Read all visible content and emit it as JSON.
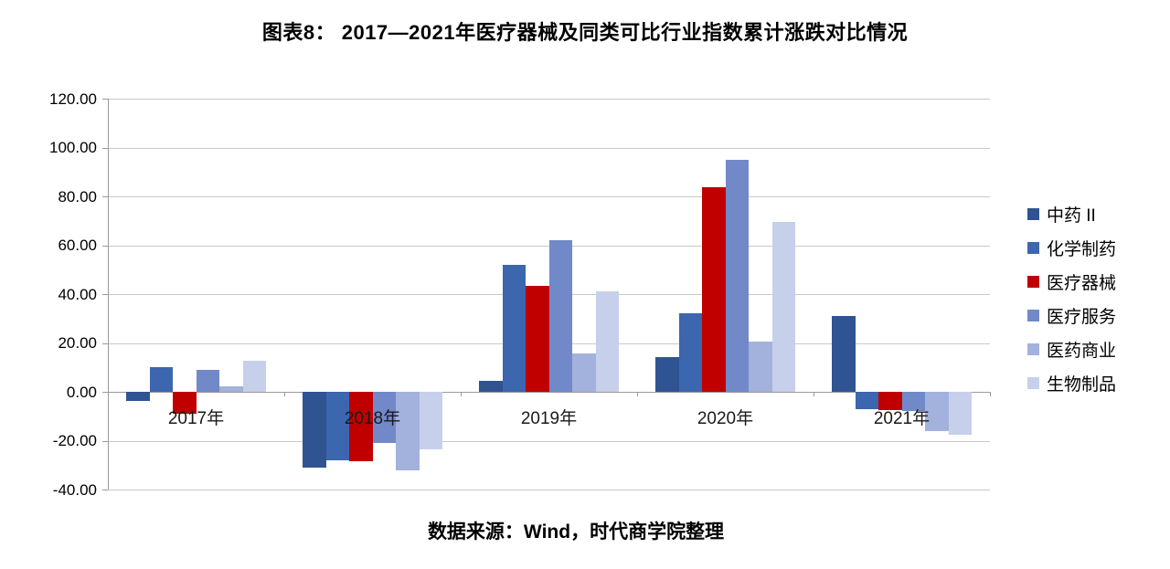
{
  "chart_data": {
    "type": "bar",
    "title": "图表8： 2017—2021年医疗器械及同类可比行业指数累计涨跌对比情况",
    "categories": [
      "2017年",
      "2018年",
      "2019年",
      "2020年",
      "2021年"
    ],
    "series": [
      {
        "name": "中药 II",
        "color": "#2f5491",
        "values": [
          -3.9,
          -31.2,
          4.4,
          14.3,
          31.2
        ]
      },
      {
        "name": "化学制药",
        "color": "#3c66ae",
        "values": [
          10.2,
          -27.9,
          51.8,
          32.3,
          -7.1
        ]
      },
      {
        "name": "医疗器械",
        "color": "#c00000",
        "values": [
          -8.8,
          -28.4,
          43.2,
          83.7,
          -7.4
        ]
      },
      {
        "name": "医疗服务",
        "color": "#7189c9",
        "values": [
          8.8,
          -21.0,
          62.2,
          95.0,
          -7.9
        ]
      },
      {
        "name": "医药商业",
        "color": "#a3b2dc",
        "values": [
          2.3,
          -32.0,
          15.8,
          20.5,
          -16.2
        ]
      },
      {
        "name": "生物制品",
        "color": "#c6d0ea",
        "values": [
          12.8,
          -23.5,
          41.3,
          69.5,
          -17.6
        ]
      }
    ],
    "ylim": [
      -40,
      120
    ],
    "ytick_step": 20,
    "ytick_decimals": 2,
    "grid": true,
    "legend_position": "right",
    "xlabel": "",
    "ylabel": ""
  },
  "source_note": "数据来源：Wind，时代商学院整理",
  "colors": {
    "gridline": "#c9c9c9",
    "axis": "#9a9a9a",
    "highlight_red": "#c00000",
    "text": "#000000"
  }
}
